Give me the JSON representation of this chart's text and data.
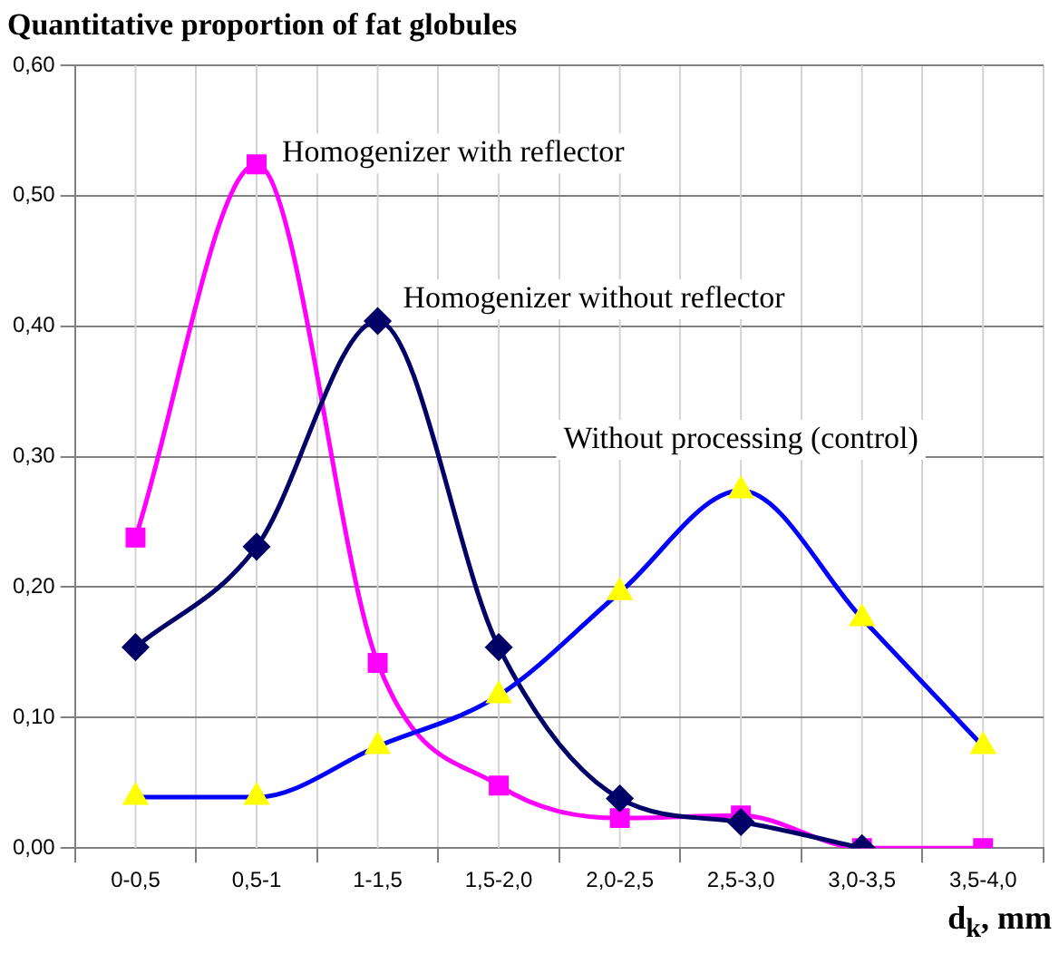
{
  "chart_data": {
    "type": "line",
    "title": "Quantitative proportion of fat globules",
    "xlabel": "d$_{k}$, mm",
    "categories": [
      "0-0,5",
      "0,5-1",
      "1-1,5",
      "1,5-2,0",
      "2,0-2,5",
      "2,5-3,0",
      "3,0-3,5",
      "3,5-4,0"
    ],
    "series": [
      {
        "name": "Homogenizer with reflector",
        "color": "#ff00ff",
        "marker": "square",
        "values": [
          0.238,
          0.524,
          0.142,
          0.048,
          0.023,
          0.025,
          0,
          0
        ]
      },
      {
        "name": "Homogenizer without reflector",
        "color": "#000066",
        "marker": "diamond",
        "values": [
          0.154,
          0.231,
          0.404,
          0.154,
          0.038,
          0.02,
          0,
          null
        ]
      },
      {
        "name": "Without processing (control)",
        "color": "#0000ff",
        "colors": [
          "#ffff00",
          "#ffff00",
          "#ffff00",
          "#ffff00",
          "#ffff00",
          "#ffff00",
          "#ffff00",
          "#ffff00"
        ],
        "marker": "triangle",
        "values": [
          0.039,
          0.039,
          0.078,
          0.117,
          0.196,
          0.274,
          0.176,
          0.078
        ]
      }
    ],
    "ylim": [
      0,
      0.6
    ],
    "yticks": [
      {
        "value": 0,
        "label": "0,00"
      },
      {
        "value": 0.1,
        "label": "0,10"
      },
      {
        "value": 0.2,
        "label": "0,20"
      },
      {
        "value": 0.3,
        "label": "0,30"
      },
      {
        "value": 0.4,
        "label": "0,40"
      },
      {
        "value": 0.5,
        "label": "0,50"
      },
      {
        "value": 0.6,
        "label": "0,60"
      }
    ],
    "grid": true,
    "legend": false
  }
}
